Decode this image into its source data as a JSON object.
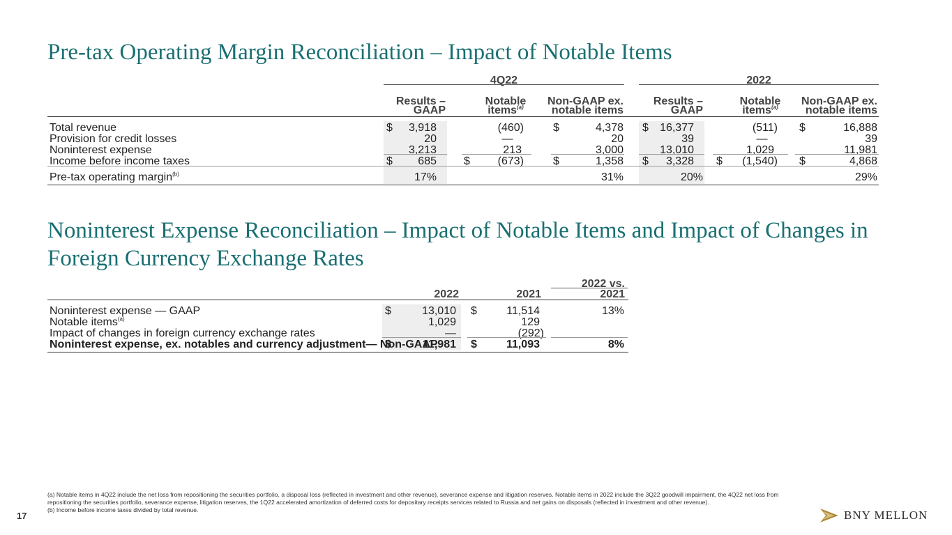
{
  "slide": {
    "title1": "Pre-tax Operating Margin Reconciliation – Impact of Notable Items",
    "title2": "Noninterest Expense Reconciliation – Impact of Notable Items and Impact of Changes in Foreign Currency Exchange Rates",
    "page_number": "17",
    "brand": "BNY MELLON",
    "footnote_a": "(a) Notable items in 4Q22 include the net loss from repositioning the securities portfolio, a disposal loss (reflected in investment and other revenue), severance expense and litigation reserves. Notable items in 2022 include the 3Q22 goodwill impairment, the 4Q22 net loss from repositioning the securities portfolio, severance expense, litigation reserves, the 1Q22 accelerated amortization of deferred costs for depositary receipts services related to Russia and net gains on disposals (reflected in investment and other revenue).",
    "footnote_b": "(b) Income before income taxes divided by total revenue."
  },
  "table1": {
    "group1": "4Q22",
    "group2": "2022",
    "col_results": [
      "Results –",
      "GAAP"
    ],
    "col_notable": "Notable",
    "col_notable2": "items",
    "col_notable_sup": "(a)",
    "col_nongaap": [
      "Non-GAAP ex.",
      "notable items"
    ],
    "dollar": "$",
    "rows": [
      {
        "label": "Total revenue",
        "v": [
          "3,918",
          "(460)",
          "4,378",
          "16,377",
          "(511)",
          "16,888"
        ]
      },
      {
        "label": "Provision for credit losses",
        "v": [
          "20",
          "—",
          "20",
          "39",
          "—",
          "39"
        ]
      },
      {
        "label": "Noninterest expense",
        "v": [
          "3,213",
          "213",
          "3,000",
          "13,010",
          "1,029",
          "11,981"
        ]
      },
      {
        "label": "Income before income taxes",
        "v": [
          "685",
          "(673)",
          "1,358",
          "3,328",
          "(1,540)",
          "4,868"
        ]
      },
      {
        "label": "Pre-tax operating margin",
        "label_sup": "(b)",
        "v": [
          "17%",
          "31%",
          "20%",
          "29%"
        ]
      }
    ]
  },
  "table2": {
    "col_2022": "2022",
    "col_2021": "2021",
    "col_vs_1": "2022 vs.",
    "col_vs_2": "2021",
    "dollar": "$",
    "rows": [
      {
        "label": "Noninterest expense — GAAP",
        "v": [
          "13,010",
          "11,514",
          "13%"
        ]
      },
      {
        "label": "Notable items",
        "label_sup": "(a)",
        "v": [
          "1,029",
          "129"
        ]
      },
      {
        "label": "Impact of changes in foreign currency exchange rates",
        "v": [
          "—",
          "(292)"
        ]
      },
      {
        "label": "Noninterest expense, ex. notables and currency adjustment— Non-GAAP",
        "v": [
          "11,981",
          "11,093",
          "8%"
        ]
      }
    ]
  },
  "colors": {
    "title": "#1a6f72",
    "shade": "#eeeeee",
    "logo_gold": "#b08a3e"
  }
}
